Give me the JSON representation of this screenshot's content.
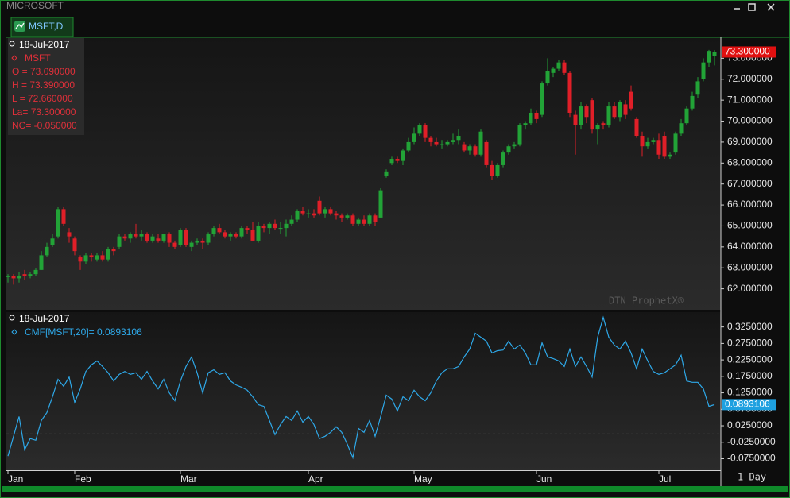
{
  "window": {
    "title": "MICROSOFT",
    "tab": "MSFT,D",
    "interval": "1 Day",
    "watermark": "DTN ProphetX®"
  },
  "chart_data": [
    {
      "type": "candlestick",
      "date_label": "18-Jul-2017",
      "symbol": "MSFT",
      "info": [
        "O = 73.090000",
        "H = 73.390000",
        "L = 72.660000",
        "La= 73.300000",
        "NC= -0.050000"
      ],
      "up_color": "#22a337",
      "down_color": "#e01f28",
      "open": [
        62.6,
        62.6,
        62.5,
        62.7,
        62.6,
        62.7,
        62.9,
        63.6,
        64.1,
        64.5,
        65.8,
        64.7,
        64.4,
        63.5,
        63.3,
        63.6,
        63.4,
        63.6,
        63.4,
        63.9,
        64.0,
        64.5,
        64.4,
        64.6,
        64.5,
        64.6,
        64.3,
        64.4,
        64.3,
        64.6,
        64.2,
        64.1,
        64.8,
        64.0,
        64.2,
        64.3,
        64.2,
        64.6,
        64.9,
        64.7,
        64.5,
        64.6,
        64.5,
        64.9,
        64.8,
        64.3,
        65.0,
        64.9,
        65.1,
        64.9,
        64.9,
        65.1,
        65.3,
        65.7,
        65.6,
        65.6,
        66.2,
        65.6,
        65.8,
        65.6,
        65.5,
        65.4,
        65.5,
        65.1,
        65.3,
        65.1,
        65.5,
        65.4,
        67.4,
        68.0,
        68.2,
        68.1,
        68.6,
        69.0,
        69.4,
        69.8,
        69.2,
        69.0,
        68.9,
        68.9,
        69.0,
        69.1,
        68.9,
        68.6,
        68.8,
        68.4,
        69.0,
        67.9,
        67.4,
        67.9,
        68.5,
        68.8,
        68.9,
        69.8,
        69.9,
        70.4,
        70.3,
        71.8,
        72.3,
        72.5,
        72.8,
        72.3,
        70.3,
        69.8,
        70.7,
        71.0,
        69.6,
        69.9,
        69.8,
        70.7,
        70.2,
        70.8,
        71.4,
        70.1,
        69.3,
        68.8,
        69.0,
        69.1,
        69.3,
        68.3,
        68.5,
        69.4,
        69.9,
        70.6,
        71.3,
        72.0,
        72.8,
        73.09
      ],
      "high": [
        62.7,
        62.7,
        62.8,
        62.9,
        62.8,
        63.0,
        63.8,
        64.2,
        64.6,
        65.9,
        65.9,
        64.9,
        64.5,
        63.6,
        63.7,
        63.7,
        63.7,
        63.8,
        64.0,
        64.0,
        64.6,
        64.6,
        64.7,
        65.1,
        64.8,
        64.7,
        64.6,
        64.6,
        64.6,
        64.7,
        64.3,
        64.9,
        64.9,
        64.3,
        64.4,
        64.4,
        64.7,
        65.0,
        65.1,
        64.8,
        64.7,
        64.7,
        65.0,
        65.0,
        65.2,
        65.2,
        65.1,
        65.2,
        65.3,
        65.2,
        65.3,
        65.5,
        65.8,
        65.9,
        65.8,
        65.8,
        66.4,
        65.9,
        65.9,
        65.7,
        65.6,
        65.6,
        65.6,
        65.4,
        65.5,
        65.6,
        65.6,
        66.8,
        67.7,
        68.3,
        68.3,
        68.7,
        69.2,
        69.7,
        69.9,
        69.9,
        69.3,
        69.2,
        69.1,
        69.1,
        69.4,
        69.6,
        69.0,
        68.9,
        68.9,
        69.6,
        69.1,
        68.1,
        68.0,
        68.6,
        68.9,
        69.0,
        69.9,
        70.0,
        70.6,
        70.5,
        71.9,
        73.0,
        72.6,
        72.9,
        72.9,
        72.4,
        70.5,
        70.9,
        70.8,
        71.1,
        69.9,
        70.0,
        70.9,
        70.9,
        71.0,
        71.0,
        71.7,
        70.2,
        69.5,
        69.2,
        69.2,
        69.4,
        69.5,
        68.5,
        69.5,
        70.1,
        70.7,
        71.4,
        72.1,
        73.0,
        73.4,
        73.39
      ],
      "low": [
        62.3,
        62.2,
        62.3,
        62.4,
        62.5,
        62.6,
        62.9,
        63.5,
        64.0,
        64.4,
        65.0,
        64.2,
        63.6,
        62.9,
        63.2,
        63.3,
        63.3,
        63.3,
        63.3,
        63.6,
        63.9,
        64.3,
        64.2,
        64.4,
        64.3,
        64.2,
        64.2,
        64.2,
        64.2,
        64.0,
        63.9,
        64.0,
        64.0,
        63.8,
        64.1,
        63.9,
        64.1,
        64.5,
        64.6,
        64.4,
        64.3,
        64.4,
        64.4,
        64.6,
        64.3,
        64.2,
        64.7,
        64.6,
        64.8,
        64.6,
        64.5,
        65.0,
        65.2,
        65.5,
        65.4,
        65.4,
        65.5,
        65.4,
        65.5,
        65.3,
        65.2,
        65.3,
        65.0,
        65.0,
        65.0,
        65.0,
        65.0,
        65.4,
        67.3,
        67.9,
        68.0,
        67.9,
        68.5,
        68.9,
        69.3,
        69.0,
        68.8,
        68.8,
        68.7,
        68.8,
        68.9,
        68.9,
        68.5,
        68.4,
        68.3,
        68.3,
        67.8,
        67.2,
        67.3,
        67.8,
        68.4,
        68.7,
        68.8,
        69.6,
        69.8,
        69.9,
        70.2,
        71.7,
        72.1,
        72.4,
        72.2,
        70.2,
        68.4,
        69.6,
        69.9,
        69.4,
        68.9,
        69.6,
        69.7,
        70.1,
        70.0,
        70.1,
        70.5,
        69.2,
        68.3,
        68.7,
        68.9,
        68.2,
        68.2,
        68.2,
        68.4,
        69.3,
        69.8,
        70.5,
        71.1,
        71.9,
        72.6,
        72.66
      ],
      "close": [
        62.6,
        62.5,
        62.6,
        62.6,
        62.7,
        62.9,
        63.6,
        64.0,
        64.4,
        65.8,
        65.1,
        64.5,
        63.8,
        63.3,
        63.6,
        63.5,
        63.6,
        63.4,
        63.9,
        63.8,
        64.5,
        64.4,
        64.6,
        64.5,
        64.6,
        64.3,
        64.5,
        64.3,
        64.6,
        64.2,
        64.0,
        64.8,
        64.1,
        64.2,
        64.3,
        64.2,
        64.6,
        64.9,
        64.7,
        64.5,
        64.6,
        64.5,
        64.9,
        64.8,
        64.3,
        65.0,
        64.9,
        65.1,
        64.9,
        64.9,
        65.1,
        65.3,
        65.7,
        65.6,
        65.6,
        65.5,
        65.6,
        65.8,
        65.6,
        65.5,
        65.4,
        65.5,
        65.1,
        65.3,
        65.1,
        65.5,
        65.2,
        66.7,
        67.6,
        68.2,
        68.1,
        68.6,
        69.0,
        69.4,
        69.8,
        69.2,
        69.0,
        68.9,
        68.9,
        69.0,
        69.1,
        69.3,
        68.6,
        68.8,
        68.4,
        69.5,
        67.9,
        67.4,
        67.9,
        68.5,
        68.8,
        68.9,
        69.8,
        69.9,
        70.4,
        70.1,
        71.8,
        72.4,
        72.5,
        72.8,
        72.3,
        70.4,
        69.8,
        70.7,
        70.2,
        69.6,
        69.8,
        69.8,
        70.7,
        70.2,
        70.9,
        70.3,
        70.6,
        69.3,
        68.8,
        69.0,
        69.1,
        68.4,
        68.3,
        68.4,
        69.4,
        69.9,
        70.6,
        71.2,
        71.9,
        72.8,
        73.35,
        73.3
      ],
      "last_label": "73.300000",
      "ylim": [
        61.0,
        74.0
      ],
      "yticks": [
        {
          "value": 62,
          "label": "62.000000"
        },
        {
          "value": 63,
          "label": "63.000000"
        },
        {
          "value": 64,
          "label": "64.000000"
        },
        {
          "value": 65,
          "label": "65.000000"
        },
        {
          "value": 66,
          "label": "66.000000"
        },
        {
          "value": 67,
          "label": "67.000000"
        },
        {
          "value": 68,
          "label": "68.000000"
        },
        {
          "value": 69,
          "label": "69.000000"
        },
        {
          "value": 70,
          "label": "70.000000"
        },
        {
          "value": 71,
          "label": "71.000000"
        },
        {
          "value": 72,
          "label": "72.000000"
        },
        {
          "value": 73,
          "label": "73.000000"
        }
      ]
    },
    {
      "type": "line",
      "date_label": "18-Jul-2017",
      "series": [
        {
          "name": "CMF[MSFT,20]= 0.0893106",
          "color": "#2ea8e8",
          "values": [
            -0.067,
            -0.007,
            0.053,
            -0.048,
            -0.014,
            -0.019,
            0.041,
            0.065,
            0.113,
            0.166,
            0.145,
            0.173,
            0.096,
            0.137,
            0.19,
            0.21,
            0.222,
            0.205,
            0.186,
            0.161,
            0.181,
            0.19,
            0.181,
            0.186,
            0.166,
            0.19,
            0.161,
            0.137,
            0.166,
            0.125,
            0.101,
            0.161,
            0.205,
            0.234,
            0.186,
            0.125,
            0.186,
            0.195,
            0.181,
            0.186,
            0.161,
            0.149,
            0.142,
            0.133,
            0.113,
            0.089,
            0.084,
            0.041,
            -0.002,
            0.029,
            0.053,
            0.041,
            0.07,
            0.036,
            0.053,
            0.029,
            -0.014,
            -0.007,
            0.005,
            0.022,
            0.005,
            -0.031,
            -0.072,
            0.017,
            0.005,
            0.041,
            -0.007,
            0.053,
            0.118,
            0.106,
            0.07,
            0.113,
            0.101,
            0.133,
            0.113,
            0.101,
            0.125,
            0.161,
            0.186,
            0.198,
            0.198,
            0.205,
            0.234,
            0.258,
            0.306,
            0.294,
            0.282,
            0.246,
            0.253,
            0.255,
            0.282,
            0.258,
            0.27,
            0.246,
            0.21,
            0.21,
            0.277,
            0.234,
            0.229,
            0.222,
            0.205,
            0.258,
            0.205,
            0.234,
            0.205,
            0.173,
            0.294,
            0.354,
            0.294,
            0.27,
            0.258,
            0.282,
            0.246,
            0.198,
            0.258,
            0.222,
            0.19,
            0.181,
            0.186,
            0.198,
            0.21,
            0.239,
            0.161,
            0.157,
            0.157,
            0.137,
            0.084,
            0.0893106
          ],
          "last_label": "0.0893106"
        }
      ],
      "reference_line": 0,
      "categories": [
        "Jan",
        null,
        null,
        null,
        null,
        null,
        null,
        null,
        null,
        null,
        null,
        null,
        "Feb",
        null,
        null,
        null,
        null,
        null,
        null,
        null,
        null,
        null,
        null,
        null,
        null,
        null,
        null,
        null,
        null,
        null,
        null,
        "Mar",
        null,
        null,
        null,
        null,
        null,
        null,
        null,
        null,
        null,
        null,
        null,
        null,
        null,
        null,
        null,
        null,
        null,
        null,
        null,
        null,
        null,
        null,
        "Apr",
        null,
        null,
        null,
        null,
        null,
        null,
        null,
        null,
        null,
        null,
        null,
        null,
        null,
        null,
        null,
        null,
        null,
        null,
        "May",
        null,
        null,
        null,
        null,
        null,
        null,
        null,
        null,
        null,
        null,
        null,
        null,
        null,
        null,
        null,
        null,
        null,
        null,
        null,
        null,
        null,
        "Jun",
        null,
        null,
        null,
        null,
        null,
        null,
        null,
        null,
        null,
        null,
        null,
        null,
        null,
        null,
        null,
        null,
        null,
        null,
        null,
        null,
        null,
        "Jul",
        null,
        null,
        null,
        null,
        null,
        null,
        null,
        null,
        null,
        null
      ],
      "ylim": [
        -0.11,
        0.37
      ],
      "yticks": [
        {
          "value": -0.075,
          "label": "-0.0750000"
        },
        {
          "value": -0.025,
          "label": "-0.0250000"
        },
        {
          "value": 0.025,
          "label": "0.0250000"
        },
        {
          "value": 0.075,
          "label": "0.0750000"
        },
        {
          "value": 0.125,
          "label": "0.1250000"
        },
        {
          "value": 0.175,
          "label": "0.1750000"
        },
        {
          "value": 0.225,
          "label": "0.2250000"
        },
        {
          "value": 0.275,
          "label": "0.2750000"
        },
        {
          "value": 0.325,
          "label": "0.3250000"
        }
      ]
    }
  ]
}
